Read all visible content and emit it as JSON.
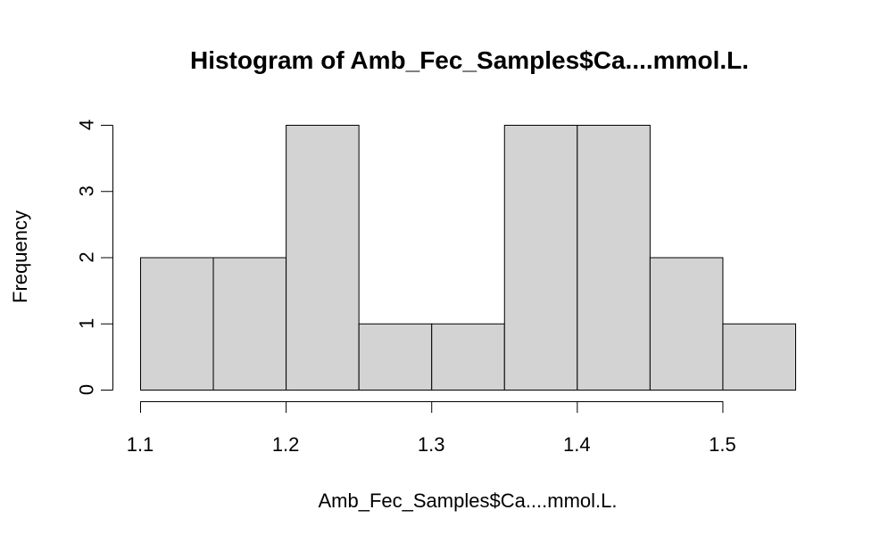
{
  "chart_data": {
    "type": "bar",
    "subtype": "histogram",
    "title": "Histogram of Amb_Fec_Samples$Ca....mmol.L.",
    "xlabel": "Amb_Fec_Samples$Ca....mmol.L.",
    "ylabel": "Frequency",
    "bins": [
      {
        "from": 1.1,
        "to": 1.15,
        "count": 2
      },
      {
        "from": 1.15,
        "to": 1.2,
        "count": 2
      },
      {
        "from": 1.2,
        "to": 1.25,
        "count": 4
      },
      {
        "from": 1.25,
        "to": 1.3,
        "count": 1
      },
      {
        "from": 1.3,
        "to": 1.35,
        "count": 1
      },
      {
        "from": 1.35,
        "to": 1.4,
        "count": 4
      },
      {
        "from": 1.4,
        "to": 1.45,
        "count": 4
      },
      {
        "from": 1.45,
        "to": 1.5,
        "count": 2
      },
      {
        "from": 1.5,
        "to": 1.55,
        "count": 1
      }
    ],
    "xlim": [
      1.1,
      1.55
    ],
    "ylim": [
      0,
      4
    ],
    "xticks": [
      1.1,
      1.2,
      1.3,
      1.4,
      1.5
    ],
    "xtick_labels": [
      "1.1",
      "1.2",
      "1.3",
      "1.4",
      "1.5"
    ],
    "yticks": [
      0,
      1,
      2,
      3,
      4
    ],
    "ytick_labels": [
      "0",
      "1",
      "2",
      "3",
      "4"
    ],
    "bar_color": "#d3d3d3",
    "edge_color": "#000000",
    "grid": false,
    "legend": "none"
  }
}
